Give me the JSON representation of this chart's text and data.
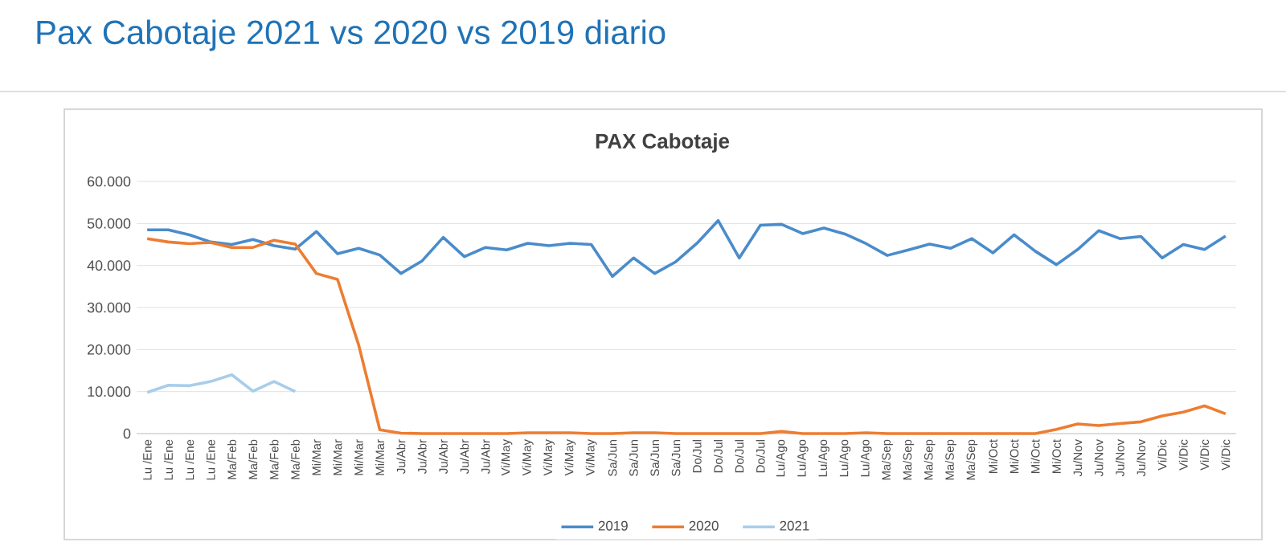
{
  "chart_data": {
    "type": "line",
    "title": "Pax Cabotaje 2021 vs 2020 vs 2019 diario",
    "subtitle": "PAX Cabotaje",
    "categories": [
      "Lu /Ene",
      "Lu /Ene",
      "Lu /Ene",
      "Lu /Ene",
      "Ma/Feb",
      "Ma/Feb",
      "Ma/Feb",
      "Ma/Feb",
      "Mi/Mar",
      "Mi/Mar",
      "Mi/Mar",
      "Mi/Mar",
      "Ju/Abr",
      "Ju/Abr",
      "Ju/Abr",
      "Ju/Abr",
      "Ju/Abr",
      "Vi/May",
      "Vi/May",
      "Vi/May",
      "Vi/May",
      "Vi/May",
      "Sa/Jun",
      "Sa/Jun",
      "Sa/Jun",
      "Sa/Jun",
      "Do/Jul",
      "Do/Jul",
      "Do/Jul",
      "Do/Jul",
      "Lu/Ago",
      "Lu/Ago",
      "Lu/Ago",
      "Lu/Ago",
      "Lu/Ago",
      "Ma/Sep",
      "Ma/Sep",
      "Ma/Sep",
      "Ma/Sep",
      "Ma/Sep",
      "Mi/Oct",
      "Mi/Oct",
      "Mi/Oct",
      "Mi/Oct",
      "Ju/Nov",
      "Ju/Nov",
      "Ju/Nov",
      "Ju/Nov",
      "Vi/Dic",
      "Vi/Dic",
      "Vi/Dic",
      "Vi/Dic"
    ],
    "series": [
      {
        "name": "2019",
        "color": "#4a8ccb",
        "values": [
          48500,
          48500,
          47300,
          45600,
          45000,
          46200,
          44700,
          43900,
          48100,
          42800,
          44100,
          42500,
          38100,
          41100,
          46700,
          42100,
          44300,
          43700,
          45300,
          44700,
          45300,
          45000,
          37400,
          41800,
          38100,
          40900,
          45300,
          50700,
          41800,
          49600,
          49800,
          47600,
          48900,
          47500,
          45200,
          42400,
          43700,
          45100,
          44100,
          46400,
          43000,
          47300,
          43400,
          40200,
          43800,
          48300,
          46400,
          46900,
          41800,
          45000,
          43800,
          47000
        ]
      },
      {
        "name": "2020",
        "color": "#ed7d31",
        "values": [
          46400,
          45600,
          45200,
          45500,
          44300,
          44300,
          46000,
          45100,
          38100,
          36700,
          21100,
          900,
          100,
          0,
          0,
          0,
          0,
          0,
          200,
          200,
          200,
          0,
          0,
          200,
          200,
          0,
          0,
          0,
          0,
          0,
          500,
          0,
          0,
          0,
          200,
          0,
          0,
          0,
          0,
          0,
          0,
          0,
          0,
          1000,
          2300,
          1900,
          2400,
          2800,
          4200,
          5100,
          6600,
          4700
        ]
      },
      {
        "name": "2021",
        "color": "#a9cde9",
        "values": [
          9800,
          11500,
          11400,
          12400,
          14000,
          10100,
          12400,
          10000,
          null,
          null,
          null,
          null,
          null,
          null,
          null,
          null,
          null,
          null,
          null,
          null,
          null,
          null,
          null,
          null,
          null,
          null,
          null,
          null,
          null,
          null,
          null,
          null,
          null,
          null,
          null,
          null,
          null,
          null,
          null,
          null,
          null,
          null,
          null,
          null,
          null,
          null,
          null,
          null,
          null,
          null,
          null,
          null
        ]
      }
    ],
    "ylim": [
      0,
      60000
    ],
    "yticks": [
      0,
      {
        "value": 10000,
        "label": "10.000"
      },
      {
        "value": 20000,
        "label": "20.000"
      },
      {
        "value": 30000,
        "label": "30.000"
      },
      {
        "value": 40000,
        "label": "40.000"
      },
      {
        "value": 50000,
        "label": "50.000"
      },
      {
        "value": 60000,
        "label": "60.000"
      }
    ],
    "grid": "y",
    "legend": "bottom",
    "marker": "none",
    "line_style": "solid"
  }
}
